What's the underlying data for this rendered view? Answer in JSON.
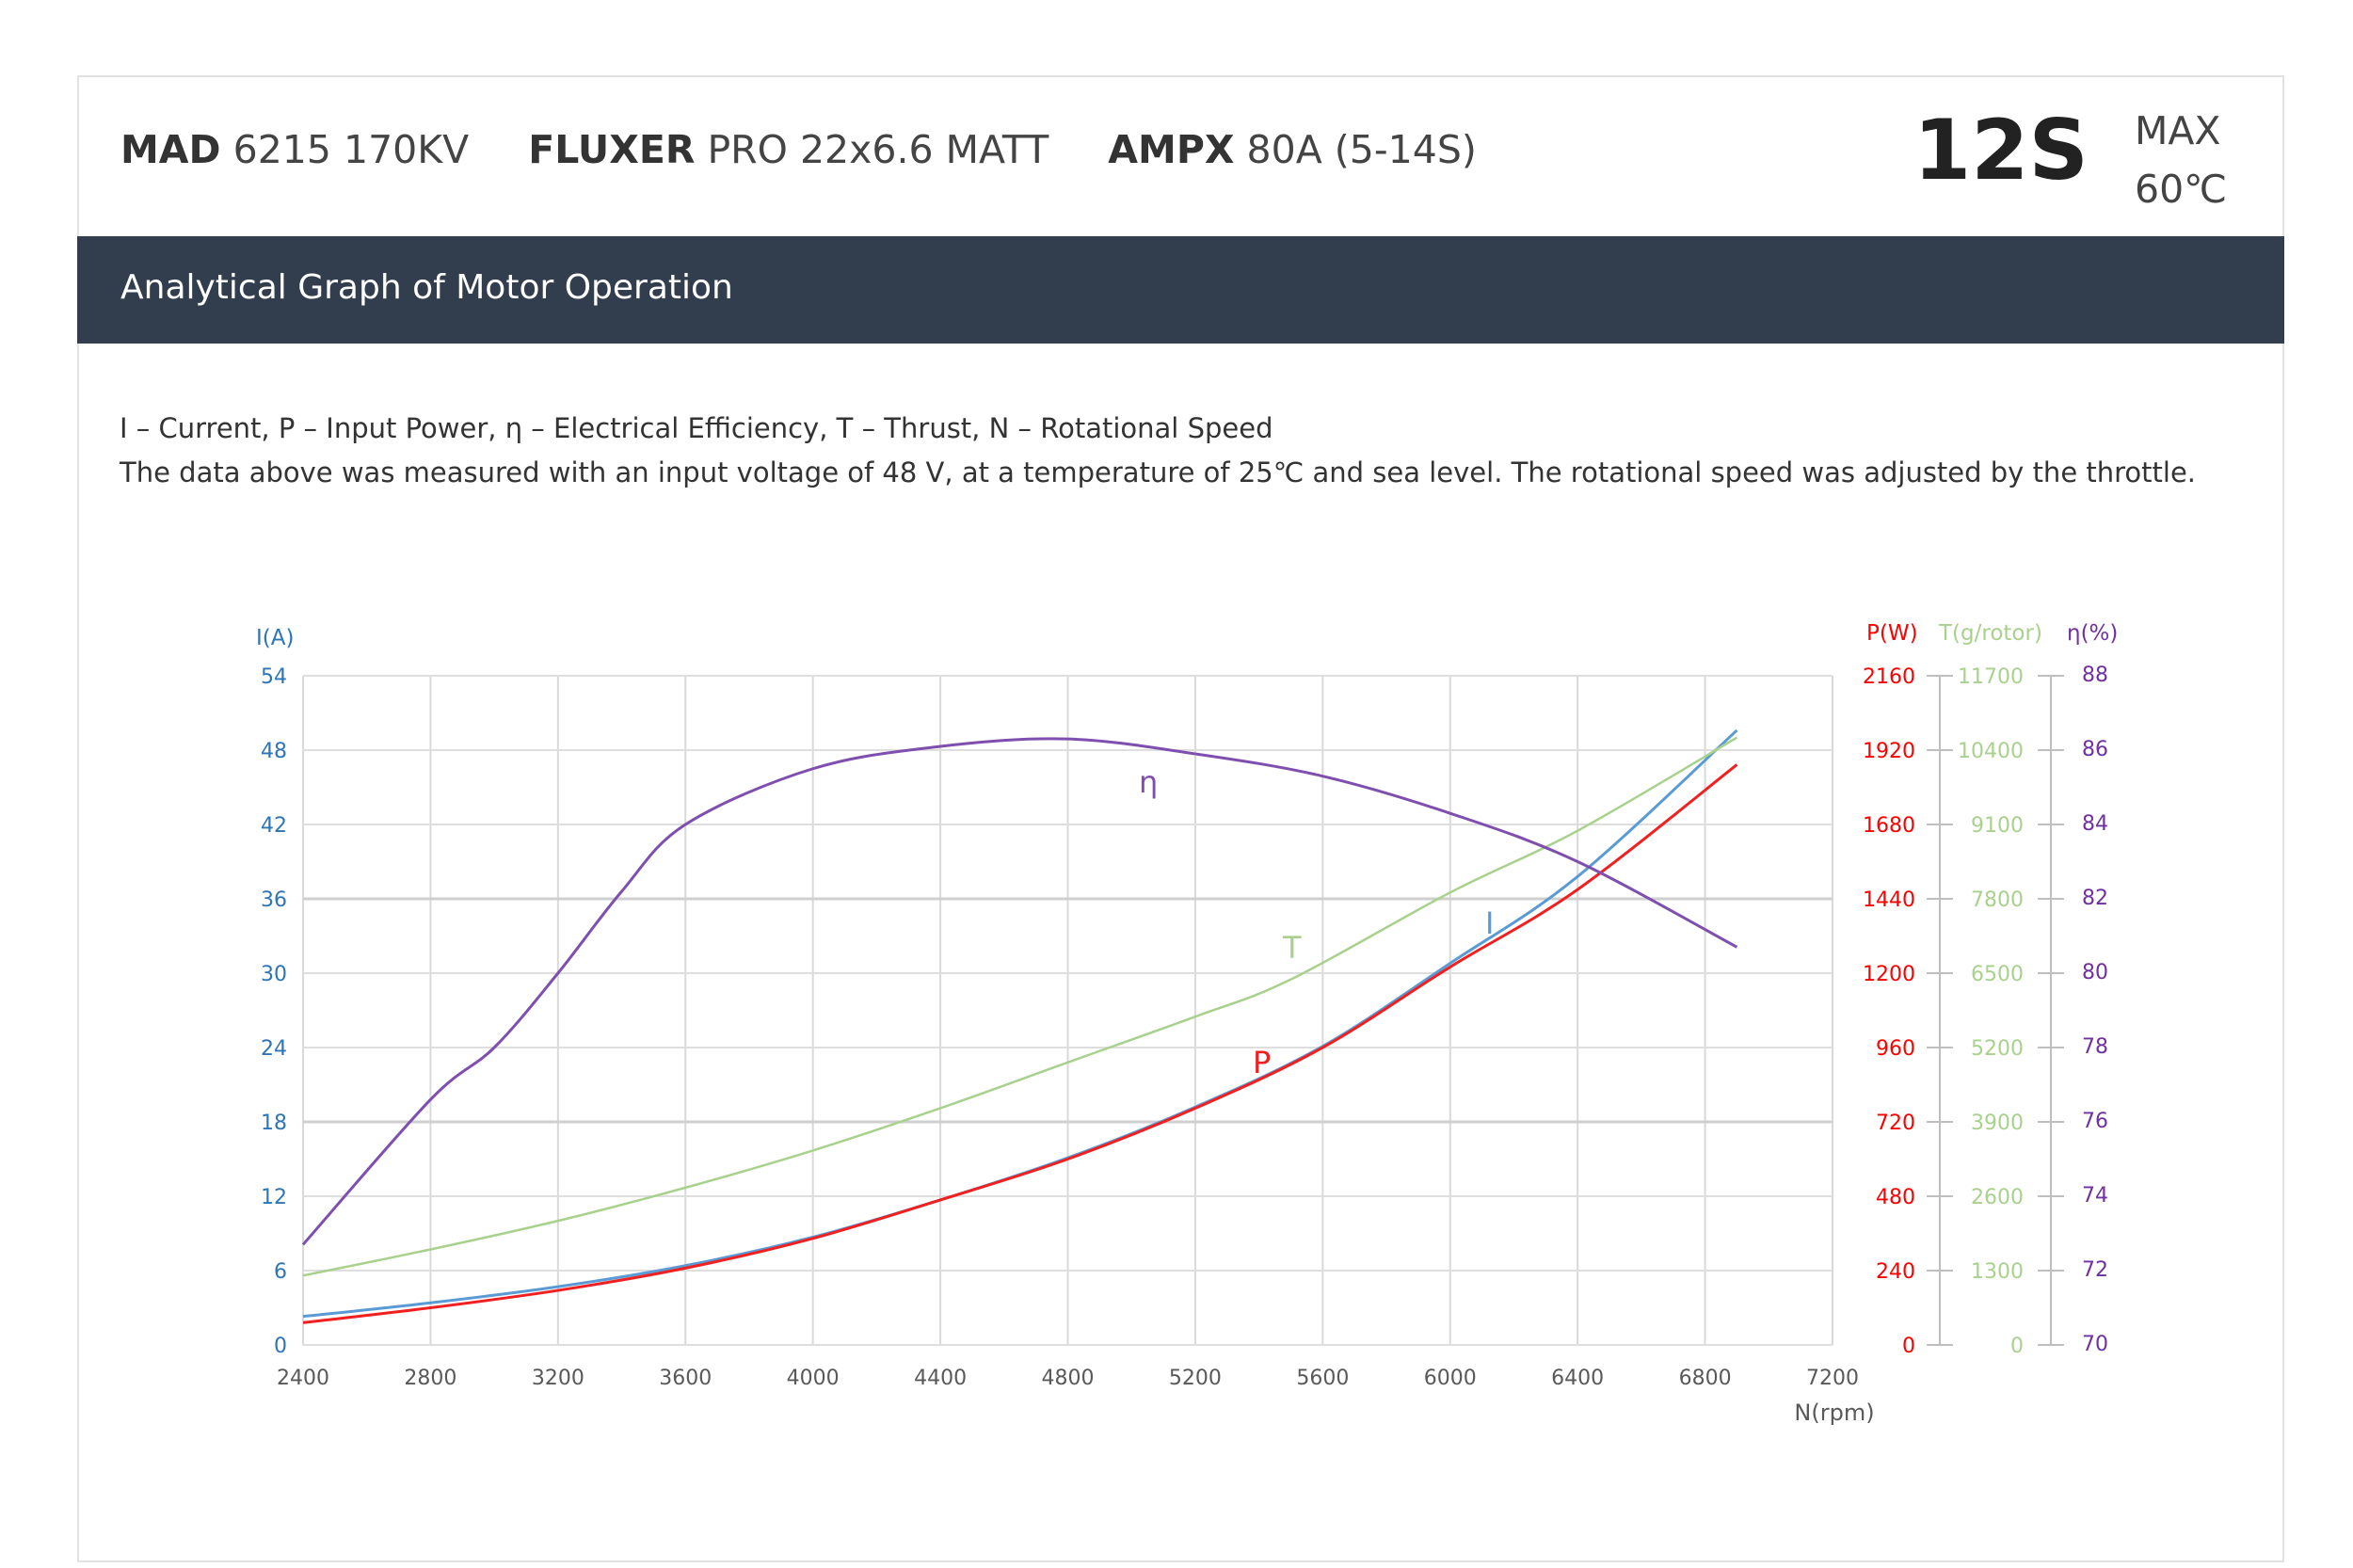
{
  "header": {
    "motor": {
      "brand": "MAD",
      "model": "6215 170KV"
    },
    "prop": {
      "brand": "FLUXER",
      "model": "PRO 22x6.6 MATT"
    },
    "esc": {
      "brand": "AMPX",
      "model": "80A (5-14S)"
    },
    "cells": "12S",
    "max_label": "MAX",
    "max_temp": "60℃"
  },
  "section_title": "Analytical Graph of Motor Operation",
  "legend_line": "I – Current, P – Input Power, η – Electrical Efficiency, T – Thrust,   N – Rotational Speed",
  "note_line": "The data above was measured with an input voltage of 48 V, at a temperature of 25℃ and sea level. The rotational speed was adjusted by the throttle.",
  "chart_data": {
    "type": "line",
    "xlabel": "N(rpm)",
    "xlim": [
      2400,
      7200
    ],
    "x_ticks": [
      "2400",
      "2800",
      "3200",
      "3600",
      "4000",
      "4400",
      "4800",
      "5200",
      "5600",
      "6000",
      "6400",
      "6800",
      "7200"
    ],
    "grid": true,
    "axes": {
      "I": {
        "label": "I(A)",
        "side": "left",
        "range": [
          0,
          54
        ],
        "ticks": [
          "0",
          "6",
          "12",
          "18",
          "24",
          "30",
          "36",
          "42",
          "48",
          "54"
        ],
        "color": "#2e75b6"
      },
      "P": {
        "label": "P(W)",
        "side": "right",
        "range": [
          0,
          2160
        ],
        "ticks": [
          "0",
          "240",
          "480",
          "720",
          "960",
          "1200",
          "1440",
          "1680",
          "1920",
          "2160"
        ],
        "color": "#ff0000"
      },
      "T": {
        "label": "T(g/rotor)",
        "side": "right",
        "range": [
          0,
          11700
        ],
        "ticks": [
          "0",
          "1300",
          "2600",
          "3900",
          "5200",
          "6500",
          "7800",
          "9100",
          "10400",
          "11700"
        ],
        "color": "#a9d18e"
      },
      "eta": {
        "label": "η(%)",
        "side": "right",
        "range": [
          70,
          88
        ],
        "ticks": [
          "70",
          "72",
          "74",
          "76",
          "78",
          "80",
          "82",
          "84",
          "86",
          "88"
        ],
        "color": "#7030a0"
      }
    },
    "series": [
      {
        "name": "I",
        "axis": "I",
        "color": "#5b9bd5",
        "x": [
          2400,
          2800,
          3200,
          3600,
          4000,
          4400,
          4800,
          5200,
          5600,
          6000,
          6400,
          6900
        ],
        "y": [
          2.3,
          3.4,
          4.7,
          6.4,
          8.7,
          11.7,
          15.1,
          19.2,
          24.1,
          30.8,
          37.8,
          49.6
        ]
      },
      {
        "name": "P",
        "axis": "P",
        "color": "#f02020",
        "x": [
          2400,
          2800,
          3200,
          3600,
          4000,
          4400,
          4800,
          5200,
          5600,
          6000,
          6400,
          6900
        ],
        "y": [
          72,
          120,
          176,
          248,
          344,
          468,
          600,
          764,
          960,
          1220,
          1470,
          1873
        ]
      },
      {
        "name": "T",
        "axis": "T",
        "color": "#a9d18e",
        "x": [
          2400,
          2800,
          3200,
          3600,
          4000,
          4400,
          4800,
          5200,
          5500,
          6000,
          6400,
          6900
        ],
        "y": [
          1213,
          1670,
          2170,
          2750,
          3400,
          4140,
          4940,
          5740,
          6390,
          7910,
          8990,
          10620
        ]
      },
      {
        "name": "η",
        "axis": "eta",
        "color": "#7f4fb0",
        "x": [
          2400,
          2800,
          3000,
          3200,
          3400,
          3600,
          4000,
          4400,
          4800,
          5200,
          5600,
          6000,
          6400,
          6900
        ],
        "y": [
          72.7,
          76.6,
          78.0,
          80.0,
          82.2,
          84.0,
          85.5,
          86.1,
          86.3,
          85.9,
          85.3,
          84.3,
          83.0,
          80.7
        ]
      }
    ]
  }
}
